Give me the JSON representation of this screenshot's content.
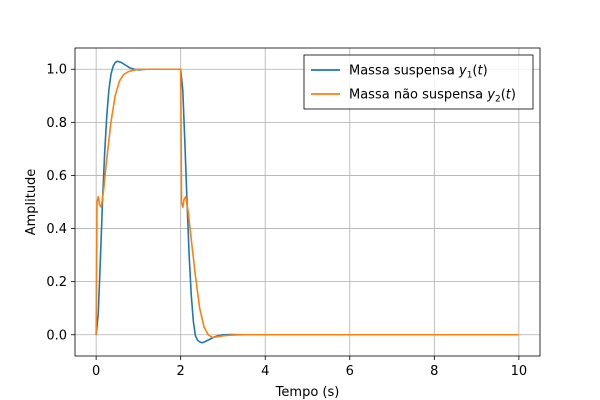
{
  "chart_data": {
    "type": "line",
    "xlabel": "Tempo (s)",
    "ylabel": "Amplitude",
    "xlim": [
      -0.5,
      10.5
    ],
    "ylim": [
      -0.08,
      1.08
    ],
    "xticks": [
      0,
      2,
      4,
      6,
      8,
      10
    ],
    "yticks": [
      0.0,
      0.2,
      0.4,
      0.6,
      0.8,
      1.0
    ],
    "xtick_labels": [
      "0",
      "2",
      "4",
      "6",
      "8",
      "10"
    ],
    "ytick_labels": [
      "0.0",
      "0.2",
      "0.4",
      "0.6",
      "0.8",
      "1.0"
    ],
    "grid": true,
    "legend_position": "top-right",
    "series": [
      {
        "name": "Massa suspensa",
        "subscript": "1",
        "color": "#1f77b4",
        "x": [
          0,
          0.05,
          0.1,
          0.15,
          0.2,
          0.25,
          0.3,
          0.35,
          0.4,
          0.45,
          0.5,
          0.55,
          0.6,
          0.7,
          0.8,
          0.9,
          1.0,
          1.2,
          1.5,
          1.8,
          2.0,
          2.05,
          2.1,
          2.15,
          2.2,
          2.25,
          2.3,
          2.35,
          2.4,
          2.45,
          2.5,
          2.55,
          2.6,
          2.7,
          2.8,
          2.9,
          3.0,
          3.2,
          3.5,
          4.0,
          6.0,
          8.0,
          10.0
        ],
        "y": [
          0,
          0.08,
          0.28,
          0.5,
          0.68,
          0.82,
          0.92,
          0.98,
          1.01,
          1.025,
          1.03,
          1.028,
          1.025,
          1.015,
          1.005,
          1.0,
          0.998,
          1.0,
          1.0,
          1.0,
          1.0,
          0.92,
          0.72,
          0.5,
          0.3,
          0.15,
          0.05,
          -0.005,
          -0.02,
          -0.027,
          -0.03,
          -0.028,
          -0.024,
          -0.016,
          -0.008,
          -0.003,
          0.0,
          0.001,
          0.0,
          0.0,
          0.0,
          0.0,
          0.0
        ]
      },
      {
        "name": "Massa não suspensa",
        "subscript": "2",
        "color": "#ff7f0e",
        "x": [
          0,
          0.02,
          0.05,
          0.08,
          0.12,
          0.18,
          0.25,
          0.35,
          0.45,
          0.55,
          0.65,
          0.75,
          0.85,
          1.0,
          1.2,
          1.5,
          2.0,
          2.02,
          2.05,
          2.08,
          2.12,
          2.18,
          2.25,
          2.35,
          2.45,
          2.55,
          2.65,
          2.75,
          2.85,
          3.0,
          3.2,
          3.5,
          4.0,
          6.0,
          8.0,
          10.0
        ],
        "y": [
          0,
          0.5,
          0.52,
          0.49,
          0.48,
          0.55,
          0.66,
          0.8,
          0.9,
          0.955,
          0.98,
          0.99,
          0.995,
          1.0,
          1.0,
          1.0,
          1.0,
          0.5,
          0.48,
          0.51,
          0.52,
          0.46,
          0.36,
          0.22,
          0.1,
          0.03,
          0.0,
          -0.01,
          -0.008,
          -0.004,
          -0.001,
          0.0,
          0.0,
          0.0,
          0.0,
          0.0
        ]
      }
    ]
  }
}
